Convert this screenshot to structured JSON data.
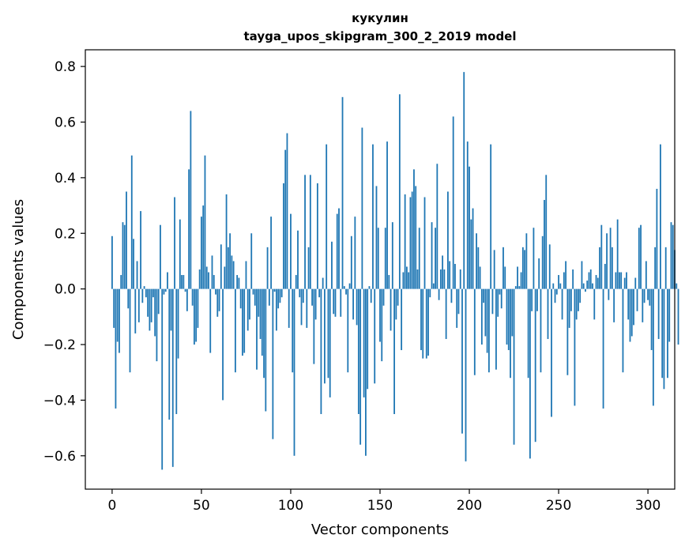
{
  "chart_data": {
    "type": "bar",
    "title_line1": "кукулин",
    "title_line2": "tayga_upos_skipgram_300_2_2019 model",
    "xlabel": "Vector components",
    "ylabel": "Components values",
    "xlim": [
      -15,
      315
    ],
    "ylim": [
      -0.72,
      0.86
    ],
    "xticks": [
      0,
      50,
      100,
      150,
      200,
      250,
      300
    ],
    "xtick_labels": [
      "0",
      "50",
      "100",
      "150",
      "200",
      "250",
      "300"
    ],
    "yticks": [
      -0.6,
      -0.4,
      -0.2,
      0.0,
      0.2,
      0.4,
      0.6,
      0.8
    ],
    "ytick_labels": [
      "−0.6",
      "−0.4",
      "−0.2",
      "0.0",
      "0.2",
      "0.4",
      "0.6",
      "0.8"
    ],
    "bar_color": "#1f77b4",
    "values": [
      0.19,
      -0.14,
      -0.43,
      -0.19,
      -0.23,
      0.05,
      0.24,
      0.23,
      0.35,
      -0.07,
      -0.3,
      0.48,
      0.18,
      -0.16,
      0.1,
      -0.12,
      0.28,
      -0.05,
      0.01,
      -0.03,
      -0.1,
      -0.15,
      -0.12,
      -0.03,
      -0.17,
      -0.26,
      -0.09,
      0.23,
      -0.65,
      -0.02,
      -0.01,
      0.06,
      -0.47,
      -0.15,
      -0.64,
      0.33,
      -0.45,
      -0.25,
      0.25,
      0.05,
      0.05,
      -0.01,
      -0.08,
      0.43,
      0.64,
      -0.06,
      -0.2,
      -0.19,
      -0.14,
      0.07,
      0.26,
      0.3,
      0.48,
      0.08,
      0.06,
      -0.23,
      0.12,
      0.05,
      -0.02,
      -0.1,
      -0.08,
      0.16,
      -0.4,
      0.08,
      0.34,
      0.15,
      0.2,
      0.12,
      0.1,
      -0.3,
      0.05,
      0.04,
      -0.07,
      -0.24,
      -0.23,
      0.1,
      -0.15,
      -0.11,
      0.2,
      -0.02,
      -0.06,
      -0.29,
      -0.1,
      -0.18,
      -0.24,
      -0.32,
      -0.44,
      0.15,
      -0.06,
      0.26,
      -0.54,
      -0.01,
      -0.15,
      -0.07,
      -0.05,
      -0.03,
      0.38,
      0.5,
      0.56,
      -0.14,
      0.27,
      -0.3,
      -0.6,
      0.05,
      0.21,
      -0.03,
      -0.13,
      -0.05,
      0.41,
      -0.14,
      0.15,
      0.41,
      -0.06,
      -0.27,
      -0.11,
      0.38,
      -0.03,
      -0.45,
      0.04,
      -0.34,
      0.52,
      -0.32,
      -0.39,
      0.17,
      -0.09,
      -0.1,
      0.27,
      0.29,
      -0.1,
      0.69,
      0.01,
      -0.02,
      -0.3,
      0.02,
      0.19,
      -0.11,
      0.26,
      -0.13,
      -0.45,
      -0.56,
      0.58,
      -0.39,
      -0.6,
      -0.36,
      0.01,
      -0.05,
      0.52,
      -0.34,
      0.37,
      0.22,
      -0.19,
      -0.26,
      -0.06,
      0.22,
      0.53,
      0.05,
      -0.15,
      0.24,
      -0.45,
      -0.11,
      -0.06,
      0.7,
      -0.22,
      0.06,
      0.34,
      0.08,
      0.06,
      0.33,
      0.35,
      0.43,
      0.37,
      0.07,
      0.22,
      -0.22,
      -0.25,
      0.33,
      -0.25,
      -0.24,
      -0.03,
      0.24,
      0.02,
      0.22,
      0.45,
      -0.04,
      0.07,
      0.12,
      0.07,
      -0.18,
      0.35,
      0.1,
      -0.05,
      0.62,
      0.09,
      -0.14,
      -0.09,
      0.07,
      -0.52,
      0.78,
      -0.62,
      0.53,
      0.44,
      0.25,
      0.29,
      -0.31,
      0.2,
      0.15,
      0.08,
      -0.2,
      -0.05,
      -0.17,
      -0.23,
      -0.3,
      0.52,
      -0.09,
      0.14,
      -0.29,
      -0.1,
      -0.02,
      -0.07,
      0.15,
      0.08,
      -0.2,
      -0.22,
      -0.32,
      -0.17,
      -0.56,
      0.01,
      0.08,
      0.01,
      0.06,
      0.15,
      0.14,
      0.2,
      -0.32,
      -0.61,
      -0.08,
      0.22,
      -0.55,
      -0.08,
      0.11,
      -0.3,
      0.19,
      0.32,
      0.41,
      -0.18,
      0.16,
      -0.46,
      0.02,
      -0.05,
      -0.02,
      0.05,
      0.02,
      -0.11,
      0.06,
      0.1,
      -0.31,
      -0.14,
      -0.08,
      0.07,
      -0.42,
      -0.11,
      -0.08,
      -0.05,
      0.1,
      0.02,
      -0.01,
      0.03,
      0.06,
      0.07,
      0.02,
      -0.11,
      0.05,
      0.04,
      0.15,
      0.23,
      -0.43,
      0.09,
      0.2,
      -0.04,
      0.22,
      0.15,
      -0.12,
      0.06,
      0.25,
      0.06,
      0.06,
      -0.3,
      0.04,
      0.06,
      -0.11,
      -0.19,
      -0.17,
      -0.13,
      0.04,
      -0.08,
      0.22,
      0.23,
      -0.12,
      -0.05,
      0.1,
      -0.04,
      -0.06,
      -0.22,
      -0.42,
      0.15,
      0.36,
      -0.18,
      0.52,
      -0.32,
      -0.36,
      0.15,
      -0.32,
      -0.19,
      0.24,
      0.23,
      0.14,
      0.02,
      -0.2
    ]
  }
}
